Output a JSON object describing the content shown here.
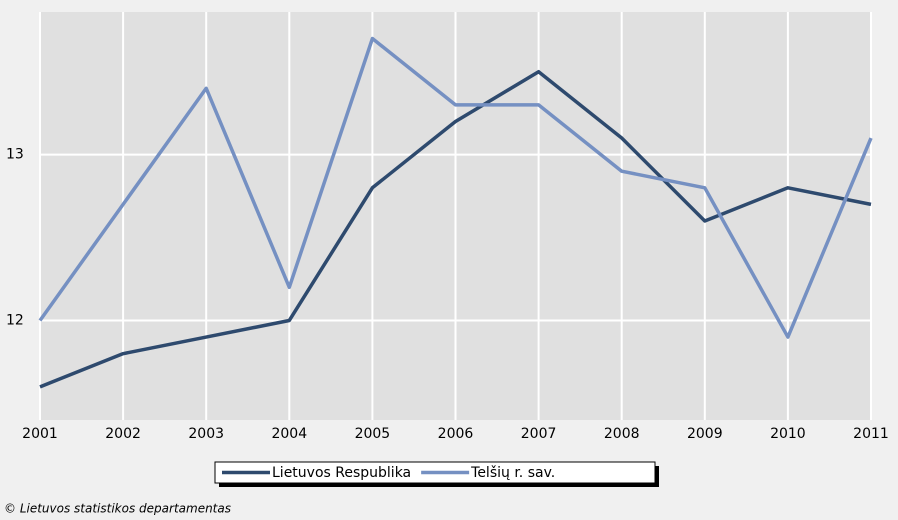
{
  "chart_data": {
    "type": "line",
    "categories": [
      "2001",
      "2002",
      "2003",
      "2004",
      "2005",
      "2006",
      "2007",
      "2008",
      "2009",
      "2010",
      "2011"
    ],
    "series": [
      {
        "name": "Lietuvos Respublika",
        "color": "#2e4a6e",
        "values": [
          11.6,
          11.8,
          11.9,
          12.0,
          12.8,
          13.2,
          13.5,
          13.1,
          12.6,
          12.8,
          12.7
        ]
      },
      {
        "name": "Telšių r. sav.",
        "color": "#7590c2",
        "values": [
          12.0,
          12.7,
          13.4,
          12.2,
          13.7,
          13.3,
          13.3,
          12.9,
          12.8,
          11.9,
          13.1
        ]
      }
    ],
    "ylim": [
      11.4,
      13.86
    ],
    "yticks": [
      12,
      13
    ],
    "grid": true,
    "legend": "bottom",
    "footer": "© Lietuvos statistikos departamentas"
  }
}
